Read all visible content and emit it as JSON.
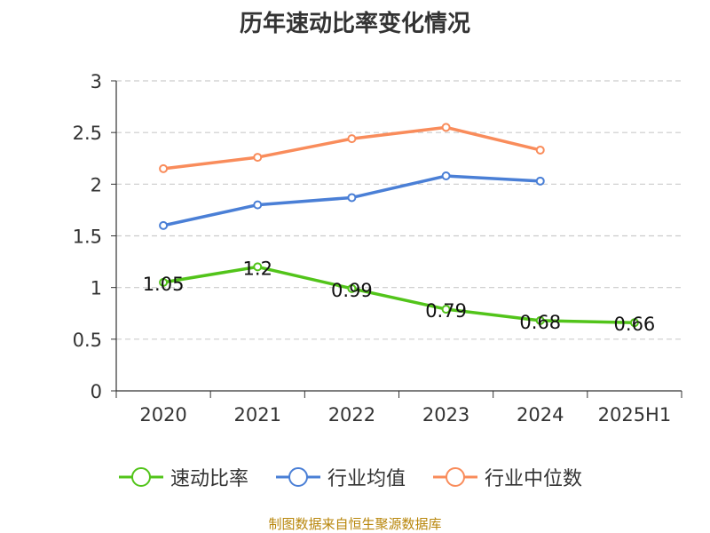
{
  "title": "历年速动比率变化情况",
  "footer": "制图数据来自恒生聚源数据库",
  "chart_data": {
    "type": "line",
    "title": "历年速动比率变化情况",
    "categories": [
      "2020",
      "2021",
      "2022",
      "2023",
      "2024",
      "2025H1"
    ],
    "ylim": [
      0,
      3
    ],
    "yticks": [
      "0",
      "0.5",
      "1",
      "1.5",
      "2",
      "2.5",
      "3"
    ],
    "grid": true,
    "legend_position": "bottom",
    "series": [
      {
        "name": "速动比率",
        "color": "#52c41a",
        "values": [
          1.05,
          1.2,
          0.99,
          0.79,
          0.68,
          0.66
        ],
        "labels": [
          "1.05",
          "1.2",
          "0.99",
          "0.79",
          "0.68",
          "0.66"
        ]
      },
      {
        "name": "行业均值",
        "color": "#4a7fd6",
        "values": [
          1.6,
          1.8,
          1.87,
          2.08,
          2.03,
          null
        ]
      },
      {
        "name": "行业中位数",
        "color": "#f98c5b",
        "values": [
          2.15,
          2.26,
          2.44,
          2.55,
          2.33,
          null
        ]
      }
    ]
  }
}
